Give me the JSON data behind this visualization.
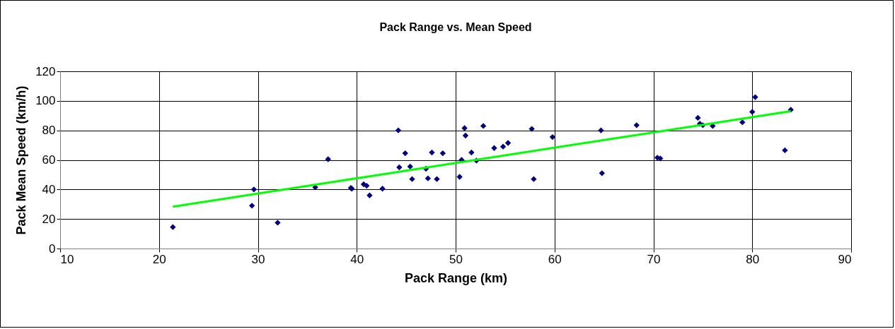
{
  "chart_data": {
    "type": "scatter",
    "title": "Pack Range vs. Mean Speed",
    "xlabel": "Pack Range (km)",
    "ylabel": "Pack Mean Speed (km/h)",
    "xlim": [
      10,
      90
    ],
    "xticks": [
      10,
      20,
      30,
      40,
      50,
      60,
      70,
      80,
      90
    ],
    "ylim": [
      0,
      120
    ],
    "yticks": [
      0,
      20,
      40,
      60,
      80,
      100,
      120
    ],
    "grid": true,
    "series": [
      {
        "marker": "diamond",
        "color": "#000080",
        "x": [
          21.4,
          29.4,
          29.6,
          32,
          35.8,
          37.1,
          39.4,
          39.5,
          40.7,
          41,
          41.3,
          42.6,
          44.2,
          44.3,
          44.9,
          45.4,
          45.6,
          47,
          47.2,
          47.6,
          48.1,
          48.7,
          50.4,
          50.6,
          50.9,
          51,
          51.6,
          52.1,
          52.8,
          53.9,
          54.8,
          55.3,
          57.7,
          57.9,
          59.8,
          64.7,
          64.8,
          68.3,
          70.4,
          70.7,
          74.5,
          74.7,
          75,
          76,
          79,
          80,
          80.3,
          83.3,
          83.9
        ],
        "values": [
          14.5,
          29,
          40,
          17.5,
          41.5,
          60.5,
          41,
          40.5,
          43.5,
          42.5,
          36,
          40.5,
          80,
          55,
          64.5,
          55.5,
          47,
          54,
          47.5,
          65,
          47,
          64.5,
          48.5,
          60,
          81.5,
          76.5,
          65,
          59.5,
          83,
          68,
          69,
          71.5,
          81,
          47,
          75.5,
          80,
          51,
          83.5,
          61.5,
          61,
          88.5,
          84.5,
          83.5,
          83,
          85.5,
          92.5,
          102.5,
          66.5,
          94
        ]
      },
      {
        "type": "line",
        "color": "#00ff00",
        "x": [
          21.4,
          83.9
        ],
        "values": [
          28.3,
          93
        ]
      }
    ]
  }
}
